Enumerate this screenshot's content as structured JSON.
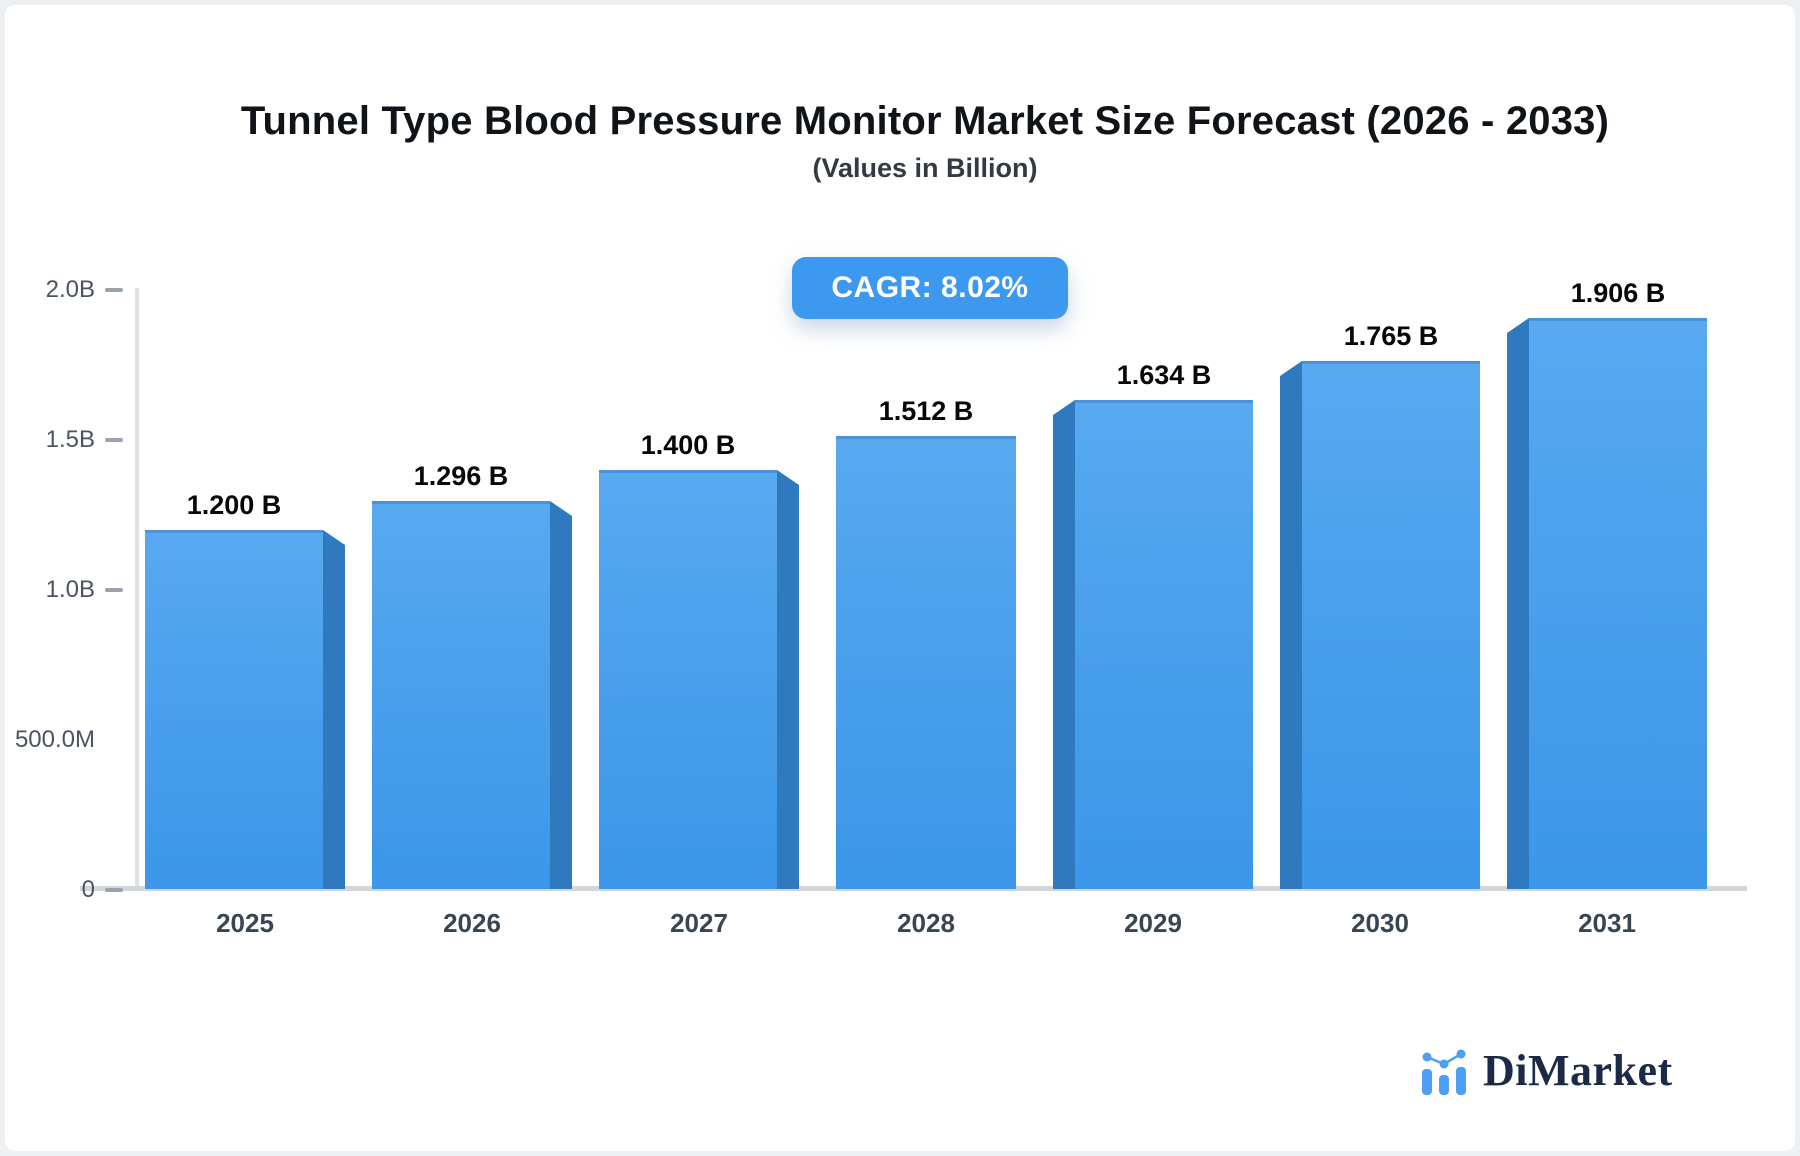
{
  "header": {
    "title": "Tunnel Type Blood Pressure Monitor Market Size Forecast (2026 - 2033)",
    "subtitle": "(Values in Billion)"
  },
  "badge": {
    "label": "CAGR: 8.02%"
  },
  "chart_data": {
    "type": "bar",
    "title": "Tunnel Type Blood Pressure Monitor Market Size Forecast (2026 - 2033)",
    "subtitle": "(Values in Billion)",
    "categories": [
      "2025",
      "2026",
      "2027",
      "2028",
      "2029",
      "2030",
      "2031"
    ],
    "values": [
      1.2,
      1.296,
      1.4,
      1.512,
      1.634,
      1.765,
      1.906
    ],
    "value_labels": [
      "1.200 B",
      "1.296 B",
      "1.400 B",
      "1.512 B",
      "1.634 B",
      "1.765 B",
      "1.906 B"
    ],
    "ylim": [
      0,
      2.0
    ],
    "y_ticks": [
      {
        "label": "2.0B",
        "value": 2.0,
        "dash": true
      },
      {
        "label": "1.5B",
        "value": 1.5,
        "dash": true
      },
      {
        "label": "1.0B",
        "value": 1.0,
        "dash": true
      },
      {
        "label": "500.0M",
        "value": 0.5,
        "dash": false
      },
      {
        "label": "0",
        "value": 0.0,
        "dash": true
      }
    ],
    "grid": false,
    "legend": null,
    "cagr": "8.02%"
  },
  "colors": {
    "accent": "#3d99f0",
    "bar_front_top": "#58a9f0",
    "bar_front_bottom": "#3c96e9",
    "bar_side": "#2f79bf",
    "bar_top_edge": "#4b92d8",
    "axis_line": "#d2d6d9",
    "tick_text": "#4a5462",
    "title_text": "#101317",
    "logo_text": "#1b2b47",
    "logo_icon": "#4d9ff3"
  },
  "logo": {
    "text": "DiMarket",
    "icon": "mini-bar-chart-icon"
  }
}
